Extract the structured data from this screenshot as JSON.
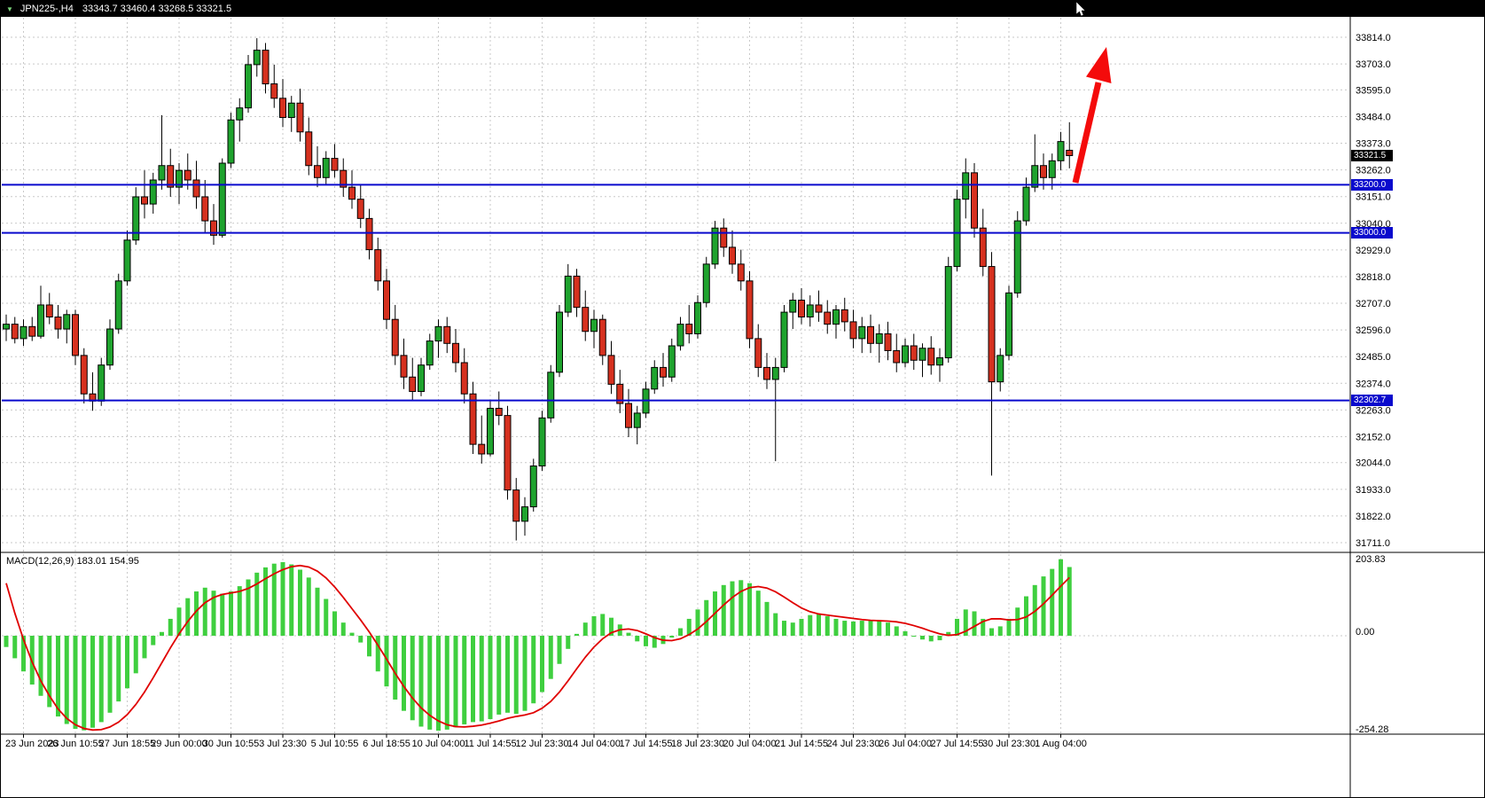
{
  "titlebar": {
    "symbol": "JPN225-,H4",
    "ohlc_text": "33343.7 33460.4 33268.5 33321.5"
  },
  "macd_panel": {
    "label": "MACD(12,26,9)",
    "values": "183.01 154.95",
    "axis_labels": [
      "203.83",
      "0.00",
      "-254.28"
    ]
  },
  "price_axis_labels": [
    "33814.0",
    "33703.0",
    "33595.0",
    "33484.0",
    "33373.0",
    "33262.0",
    "33151.0",
    "33040.0",
    "32929.0",
    "32818.0",
    "32707.0",
    "32596.0",
    "32485.0",
    "32374.0",
    "32263.0",
    "32152.0",
    "32044.0",
    "31933.0",
    "31822.0",
    "31711.0"
  ],
  "time_axis_labels": [
    "23 Jun 2023",
    "26 Jun 10:55",
    "27 Jun 18:55",
    "29 Jun 00:00",
    "30 Jun 10:55",
    "3 Jul 23:30",
    "5 Jul 10:55",
    "6 Jul 18:55",
    "10 Jul 04:00",
    "11 Jul 14:55",
    "12 Jul 23:30",
    "14 Jul 04:00",
    "17 Jul 14:55",
    "18 Jul 23:30",
    "20 Jul 04:00",
    "21 Jul 14:55",
    "24 Jul 23:30",
    "26 Jul 04:00",
    "27 Jul 14:55",
    "30 Jul 23:30",
    "1 Aug 04:00"
  ],
  "price_tags": [
    {
      "text": "33321.5",
      "value": 33321.5,
      "bg": "#000000"
    },
    {
      "text": "33200.0",
      "value": 33200.0,
      "bg": "#0a0acd"
    },
    {
      "text": "33000.0",
      "value": 33000.0,
      "bg": "#0a0acd"
    },
    {
      "text": "32302.7",
      "value": 32302.7,
      "bg": "#0a0acd"
    }
  ],
  "colors": {
    "bull": "#1fa32e",
    "bear": "#d6311f",
    "wick": "#000000",
    "hline": "#0a0acd",
    "macd_bar": "#3fcf3f",
    "macd_signal": "#e00000",
    "arrow": "#f40b0b",
    "grid": "#c9c9c9",
    "tag_current_bg": "#000000",
    "tag_hline_bg": "#0a0acd"
  },
  "chart_data": {
    "type": "candlestick",
    "symbol": "JPN225-",
    "timeframe": "H4",
    "title": "JPN225-,H4 33343.7 33460.4 33268.5 33321.5",
    "current_ohlc": {
      "open": 33343.7,
      "high": 33460.4,
      "low": 33268.5,
      "close": 33321.5
    },
    "price_axis_range": {
      "top": 33814.0,
      "bottom": 31711.0
    },
    "hlines": [
      33200.0,
      33000.0,
      32302.7
    ],
    "annotation_arrow": {
      "direction": "up",
      "meaning": "bullish breakout above 33200 support"
    },
    "candles": [
      [
        32600,
        32660,
        32550,
        32620
      ],
      [
        32620,
        32650,
        32540,
        32560
      ],
      [
        32560,
        32640,
        32530,
        32610
      ],
      [
        32610,
        32650,
        32550,
        32570
      ],
      [
        32570,
        32780,
        32560,
        32700
      ],
      [
        32700,
        32750,
        32620,
        32650
      ],
      [
        32650,
        32700,
        32560,
        32600
      ],
      [
        32600,
        32680,
        32540,
        32660
      ],
      [
        32660,
        32680,
        32450,
        32490
      ],
      [
        32490,
        32520,
        32290,
        32330
      ],
      [
        32330,
        32420,
        32260,
        32300
      ],
      [
        32300,
        32480,
        32280,
        32450
      ],
      [
        32450,
        32640,
        32430,
        32600
      ],
      [
        32600,
        32830,
        32580,
        32800
      ],
      [
        32800,
        33010,
        32780,
        32970
      ],
      [
        32970,
        33190,
        32950,
        33150
      ],
      [
        33150,
        33260,
        33060,
        33120
      ],
      [
        33120,
        33250,
        33080,
        33220
      ],
      [
        33220,
        33490,
        33180,
        33280
      ],
      [
        33280,
        33350,
        33150,
        33190
      ],
      [
        33190,
        33290,
        33120,
        33260
      ],
      [
        33260,
        33330,
        33180,
        33220
      ],
      [
        33220,
        33300,
        33100,
        33150
      ],
      [
        33150,
        33220,
        33000,
        33050
      ],
      [
        33050,
        33120,
        32950,
        32990
      ],
      [
        32990,
        33310,
        32980,
        33290
      ],
      [
        33290,
        33500,
        33270,
        33470
      ],
      [
        33470,
        33560,
        33380,
        33520
      ],
      [
        33520,
        33740,
        33500,
        33700
      ],
      [
        33700,
        33810,
        33650,
        33760
      ],
      [
        33760,
        33790,
        33580,
        33620
      ],
      [
        33620,
        33700,
        33520,
        33560
      ],
      [
        33560,
        33640,
        33440,
        33480
      ],
      [
        33480,
        33570,
        33420,
        33540
      ],
      [
        33540,
        33600,
        33380,
        33420
      ],
      [
        33420,
        33480,
        33240,
        33280
      ],
      [
        33280,
        33360,
        33190,
        33230
      ],
      [
        33230,
        33340,
        33200,
        33310
      ],
      [
        33310,
        33370,
        33230,
        33260
      ],
      [
        33260,
        33310,
        33150,
        33190
      ],
      [
        33190,
        33260,
        33100,
        33140
      ],
      [
        33140,
        33200,
        33020,
        33060
      ],
      [
        33060,
        33100,
        32890,
        32930
      ],
      [
        32930,
        32980,
        32760,
        32800
      ],
      [
        32800,
        32850,
        32600,
        32640
      ],
      [
        32640,
        32700,
        32450,
        32490
      ],
      [
        32490,
        32560,
        32350,
        32400
      ],
      [
        32400,
        32480,
        32300,
        32340
      ],
      [
        32340,
        32480,
        32320,
        32450
      ],
      [
        32450,
        32580,
        32430,
        32550
      ],
      [
        32550,
        32640,
        32480,
        32610
      ],
      [
        32610,
        32650,
        32500,
        32540
      ],
      [
        32540,
        32600,
        32420,
        32460
      ],
      [
        32460,
        32520,
        32290,
        32330
      ],
      [
        32330,
        32380,
        32080,
        32120
      ],
      [
        32120,
        32240,
        32040,
        32080
      ],
      [
        32080,
        32300,
        32070,
        32270
      ],
      [
        32270,
        32340,
        32200,
        32240
      ],
      [
        32240,
        32280,
        31890,
        31930
      ],
      [
        31930,
        31980,
        31720,
        31800
      ],
      [
        31800,
        31900,
        31740,
        31860
      ],
      [
        31860,
        32060,
        31840,
        32030
      ],
      [
        32030,
        32260,
        32010,
        32230
      ],
      [
        32230,
        32450,
        32210,
        32420
      ],
      [
        32420,
        32700,
        32400,
        32670
      ],
      [
        32670,
        32870,
        32650,
        32820
      ],
      [
        32820,
        32850,
        32650,
        32690
      ],
      [
        32690,
        32760,
        32550,
        32590
      ],
      [
        32590,
        32680,
        32520,
        32640
      ],
      [
        32640,
        32660,
        32450,
        32490
      ],
      [
        32490,
        32550,
        32330,
        32370
      ],
      [
        32370,
        32430,
        32250,
        32290
      ],
      [
        32290,
        32350,
        32150,
        32190
      ],
      [
        32190,
        32280,
        32120,
        32250
      ],
      [
        32250,
        32380,
        32230,
        32350
      ],
      [
        32350,
        32470,
        32330,
        32440
      ],
      [
        32440,
        32500,
        32360,
        32400
      ],
      [
        32400,
        32560,
        32380,
        32530
      ],
      [
        32530,
        32650,
        32510,
        32620
      ],
      [
        32620,
        32700,
        32540,
        32580
      ],
      [
        32580,
        32740,
        32560,
        32710
      ],
      [
        32710,
        32900,
        32690,
        32870
      ],
      [
        32870,
        33050,
        32850,
        33020
      ],
      [
        33020,
        33060,
        32900,
        32940
      ],
      [
        32940,
        33010,
        32830,
        32870
      ],
      [
        32870,
        32930,
        32760,
        32800
      ],
      [
        32800,
        32840,
        32520,
        32560
      ],
      [
        32560,
        32620,
        32400,
        32440
      ],
      [
        32440,
        32500,
        32350,
        32390
      ],
      [
        32390,
        32480,
        32050,
        32440
      ],
      [
        32440,
        32700,
        32420,
        32670
      ],
      [
        32670,
        32750,
        32600,
        32720
      ],
      [
        32720,
        32770,
        32620,
        32650
      ],
      [
        32650,
        32740,
        32610,
        32700
      ],
      [
        32700,
        32760,
        32630,
        32670
      ],
      [
        32670,
        32720,
        32580,
        32620
      ],
      [
        32620,
        32700,
        32560,
        32680
      ],
      [
        32680,
        32730,
        32590,
        32630
      ],
      [
        32630,
        32680,
        32520,
        32560
      ],
      [
        32560,
        32650,
        32500,
        32610
      ],
      [
        32610,
        32660,
        32500,
        32540
      ],
      [
        32540,
        32620,
        32460,
        32580
      ],
      [
        32580,
        32630,
        32470,
        32510
      ],
      [
        32510,
        32580,
        32420,
        32460
      ],
      [
        32460,
        32560,
        32440,
        32530
      ],
      [
        32530,
        32580,
        32430,
        32470
      ],
      [
        32470,
        32540,
        32400,
        32520
      ],
      [
        32520,
        32570,
        32410,
        32450
      ],
      [
        32450,
        32520,
        32380,
        32480
      ],
      [
        32480,
        32900,
        32460,
        32860
      ],
      [
        32860,
        33180,
        32840,
        33140
      ],
      [
        33140,
        33310,
        33060,
        33250
      ],
      [
        33250,
        33290,
        32980,
        33020
      ],
      [
        33020,
        33100,
        32820,
        32860
      ],
      [
        32860,
        32920,
        31990,
        32380
      ],
      [
        32380,
        32520,
        32340,
        32490
      ],
      [
        32490,
        32780,
        32470,
        32750
      ],
      [
        32750,
        33090,
        32730,
        33050
      ],
      [
        33050,
        33230,
        33030,
        33190
      ],
      [
        33190,
        33410,
        33170,
        33280
      ],
      [
        33280,
        33330,
        33180,
        33230
      ],
      [
        33230,
        33330,
        33180,
        33300
      ],
      [
        33300,
        33420,
        33260,
        33380
      ],
      [
        33343.7,
        33460.4,
        33268.5,
        33321.5
      ]
    ],
    "macd": {
      "params": "12,26,9",
      "main_last": 183.01,
      "signal_last": 154.95,
      "axis_range": {
        "top": 203.83,
        "zero": 0.0,
        "bottom": -254.28
      },
      "histogram": [
        -30,
        -60,
        -95,
        -130,
        -160,
        -190,
        -215,
        -235,
        -248,
        -252,
        -245,
        -230,
        -205,
        -175,
        -140,
        -100,
        -60,
        -25,
        10,
        45,
        75,
        100,
        118,
        128,
        120,
        112,
        118,
        132,
        150,
        168,
        182,
        192,
        196,
        190,
        176,
        155,
        128,
        98,
        65,
        35,
        8,
        -18,
        -55,
        -95,
        -135,
        -170,
        -200,
        -225,
        -242,
        -250,
        -253,
        -250,
        -244,
        -236,
        -230,
        -228,
        -222,
        -210,
        -205,
        -208,
        -200,
        -180,
        -150,
        -115,
        -75,
        -35,
        5,
        35,
        52,
        58,
        48,
        30,
        8,
        -15,
        -28,
        -32,
        -22,
        -5,
        20,
        45,
        70,
        95,
        118,
        135,
        145,
        148,
        140,
        120,
        90,
        60,
        40,
        35,
        45,
        55,
        58,
        52,
        45,
        40,
        38,
        40,
        42,
        40,
        35,
        25,
        12,
        0,
        -10,
        -15,
        -12,
        10,
        45,
        70,
        65,
        45,
        20,
        25,
        45,
        75,
        105,
        135,
        158,
        178,
        203.8,
        183
      ],
      "signal": [
        140,
        60,
        -10,
        -70,
        -120,
        -160,
        -195,
        -220,
        -237,
        -247,
        -251,
        -250,
        -243,
        -230,
        -210,
        -183,
        -150,
        -112,
        -72,
        -32,
        5,
        38,
        66,
        88,
        102,
        110,
        114,
        118,
        126,
        138,
        152,
        165,
        176,
        184,
        187,
        183,
        172,
        154,
        130,
        102,
        72,
        42,
        10,
        -25,
        -62,
        -100,
        -135,
        -166,
        -192,
        -212,
        -227,
        -237,
        -242,
        -243,
        -241,
        -238,
        -233,
        -227,
        -220,
        -215,
        -211,
        -205,
        -193,
        -175,
        -150,
        -120,
        -88,
        -57,
        -30,
        -8,
        8,
        16,
        18,
        14,
        5,
        -5,
        -12,
        -13,
        -8,
        3,
        18,
        38,
        60,
        82,
        102,
        118,
        128,
        131,
        127,
        117,
        103,
        88,
        74,
        64,
        58,
        55,
        52,
        49,
        46,
        43,
        41,
        40,
        39,
        37,
        33,
        27,
        20,
        12,
        5,
        1,
        3,
        12,
        25,
        38,
        45,
        45,
        42,
        43,
        50,
        65,
        85,
        108,
        132,
        154.95
      ]
    }
  }
}
